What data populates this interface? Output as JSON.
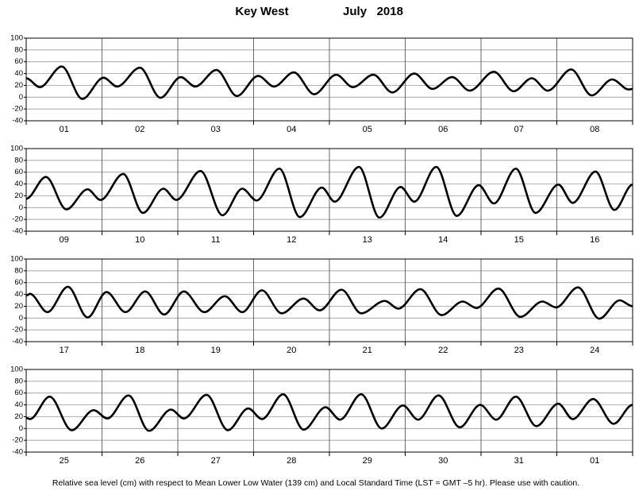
{
  "title_station": "Key West",
  "title_month": "July   2018",
  "footnote": "Relative sea level (cm) with respect to Mean Lower Low Water (139 cm) and Local Standard Time (LST = GMT –5 hr). Please use with caution.",
  "chart_data": [
    {
      "type": "line",
      "day_labels": [
        "01",
        "02",
        "03",
        "04",
        "05",
        "06",
        "07",
        "08"
      ],
      "xlim": [
        0,
        8
      ],
      "xticks": [
        0,
        1,
        2,
        3,
        4,
        5,
        6,
        7,
        8
      ],
      "ylim": [
        -40,
        100
      ],
      "yticks": [
        -40,
        -20,
        0,
        20,
        40,
        60,
        80,
        100
      ],
      "grid": true,
      "series": [
        {
          "color": "#000000",
          "x": [
            0,
            0.18,
            0.47,
            0.74,
            1.02,
            1.2,
            1.5,
            1.77,
            2.04,
            2.23,
            2.51,
            2.78,
            3.06,
            3.27,
            3.53,
            3.8,
            4.09,
            4.31,
            4.58,
            4.83,
            5.12,
            5.36,
            5.62,
            5.85,
            6.17,
            6.43,
            6.67,
            6.88,
            7.19,
            7.46,
            7.73,
            7.95,
            8
          ],
          "values": [
            32,
            17,
            52,
            -3,
            33,
            18,
            50,
            -1,
            34,
            18,
            46,
            2,
            36,
            18,
            42,
            5,
            38,
            17,
            38,
            8,
            40,
            14,
            34,
            11,
            43,
            10,
            32,
            11,
            47,
            3,
            30,
            13,
            14
          ]
        }
      ]
    },
    {
      "type": "line",
      "day_labels": [
        "09",
        "10",
        "11",
        "12",
        "13",
        "14",
        "15",
        "16"
      ],
      "xlim": [
        0,
        8
      ],
      "xticks": [
        0,
        1,
        2,
        3,
        4,
        5,
        6,
        7,
        8
      ],
      "ylim": [
        -40,
        100
      ],
      "yticks": [
        -40,
        -20,
        0,
        20,
        40,
        60,
        80,
        100
      ],
      "grid": true,
      "series": [
        {
          "color": "#000000",
          "x": [
            0,
            0.26,
            0.53,
            0.81,
            0.98,
            1.28,
            1.54,
            1.81,
            1.98,
            2.3,
            2.59,
            2.85,
            3.04,
            3.34,
            3.61,
            3.9,
            4.07,
            4.39,
            4.66,
            4.94,
            5.12,
            5.41,
            5.68,
            5.97,
            6.17,
            6.46,
            6.72,
            7.02,
            7.21,
            7.51,
            7.76,
            8
          ],
          "values": [
            15,
            52,
            -3,
            31,
            13,
            57,
            -9,
            32,
            13,
            62,
            -13,
            32,
            12,
            66,
            -16,
            34,
            10,
            69,
            -17,
            35,
            10,
            69,
            -14,
            38,
            7,
            66,
            -9,
            39,
            8,
            61,
            -4,
            39
          ]
        }
      ]
    },
    {
      "type": "line",
      "day_labels": [
        "17",
        "18",
        "19",
        "20",
        "21",
        "22",
        "23",
        "24"
      ],
      "xlim": [
        0,
        8
      ],
      "xticks": [
        0,
        1,
        2,
        3,
        4,
        5,
        6,
        7,
        8
      ],
      "ylim": [
        -40,
        100
      ],
      "yticks": [
        -40,
        -20,
        0,
        20,
        40,
        60,
        80,
        100
      ],
      "grid": true,
      "series": [
        {
          "color": "#000000",
          "x": [
            0,
            0.05,
            0.28,
            0.55,
            0.81,
            1.06,
            1.31,
            1.57,
            1.82,
            2.08,
            2.35,
            2.62,
            2.85,
            3.11,
            3.37,
            3.66,
            3.87,
            4.16,
            4.42,
            4.73,
            4.91,
            5.2,
            5.48,
            5.76,
            5.94,
            6.23,
            6.52,
            6.81,
            6.99,
            7.28,
            7.56,
            7.83,
            8
          ],
          "values": [
            38,
            41,
            10,
            53,
            1,
            44,
            10,
            45,
            6,
            45,
            10,
            37,
            10,
            47,
            8,
            33,
            13,
            48,
            8,
            29,
            16,
            49,
            5,
            28,
            17,
            50,
            2,
            28,
            18,
            52,
            -1,
            30,
            20
          ]
        }
      ]
    },
    {
      "type": "line",
      "day_labels": [
        "25",
        "26",
        "27",
        "28",
        "29",
        "30",
        "31",
        "01"
      ],
      "xlim": [
        0,
        8
      ],
      "xticks": [
        0,
        1,
        2,
        3,
        4,
        5,
        6,
        7,
        8
      ],
      "ylim": [
        -40,
        100
      ],
      "yticks": [
        -40,
        -20,
        0,
        20,
        40,
        60,
        80,
        100
      ],
      "grid": true,
      "series": [
        {
          "color": "#000000",
          "x": [
            0,
            0.05,
            0.31,
            0.6,
            0.89,
            1.07,
            1.35,
            1.62,
            1.91,
            2.08,
            2.38,
            2.66,
            2.93,
            3.11,
            3.39,
            3.66,
            3.95,
            4.14,
            4.42,
            4.69,
            4.97,
            5.17,
            5.44,
            5.72,
            5.99,
            6.2,
            6.46,
            6.73,
            7.02,
            7.21,
            7.48,
            7.75,
            8
          ],
          "values": [
            18,
            16,
            54,
            -3,
            31,
            17,
            56,
            -4,
            32,
            17,
            57,
            -3,
            34,
            16,
            58,
            -2,
            36,
            15,
            58,
            0,
            39,
            15,
            56,
            2,
            40,
            15,
            54,
            4,
            42,
            16,
            50,
            8,
            40
          ]
        }
      ]
    }
  ]
}
